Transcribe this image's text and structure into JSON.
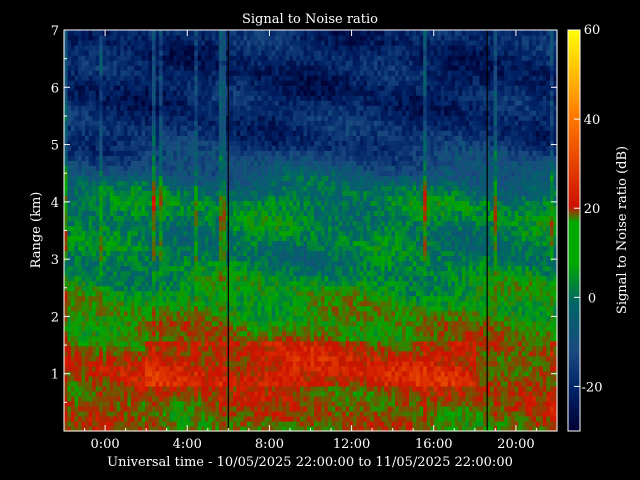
{
  "chart_data": {
    "type": "heatmap",
    "title": "Signal to Noise ratio",
    "xlabel": "Universal time - 10/05/2025 22:00:00 to 11/05/2025 22:00:00",
    "ylabel": "Range (km)",
    "colorbar_label": "Signal to Noise ratio (dB)",
    "x_ticks": [
      "0:00",
      "4:00",
      "8:00",
      "12:00",
      "16:00",
      "20:00"
    ],
    "x_tick_hours": [
      2,
      6,
      10,
      14,
      18,
      22
    ],
    "x_range_hours": [
      0,
      24
    ],
    "y_ticks": [
      1,
      2,
      3,
      4,
      5,
      6,
      7
    ],
    "ylim": [
      0,
      7
    ],
    "colorbar_ticks": [
      60,
      40,
      20,
      0,
      -20
    ],
    "clim": [
      -30,
      60
    ],
    "colormap": [
      "#000033",
      "#002266",
      "#1a4a80",
      "#006666",
      "#00aa00",
      "#cc1100",
      "#ff7700",
      "#ffff00"
    ],
    "snr_profile_db": [
      {
        "range_km": 0.2,
        "snr_db": 14
      },
      {
        "range_km": 1.0,
        "snr_db": 18
      },
      {
        "range_km": 1.5,
        "snr_db": 14
      },
      {
        "range_km": 2.0,
        "snr_db": 10
      },
      {
        "range_km": 2.5,
        "snr_db": 6
      },
      {
        "range_km": 3.0,
        "snr_db": 0
      },
      {
        "range_km": 4.0,
        "snr_db": 3
      },
      {
        "range_km": 5.0,
        "snr_db": -18
      },
      {
        "range_km": 6.0,
        "snr_db": -22
      },
      {
        "range_km": 7.0,
        "snr_db": -20
      }
    ],
    "missing_data_times": [
      "6:00",
      "18:00"
    ]
  }
}
